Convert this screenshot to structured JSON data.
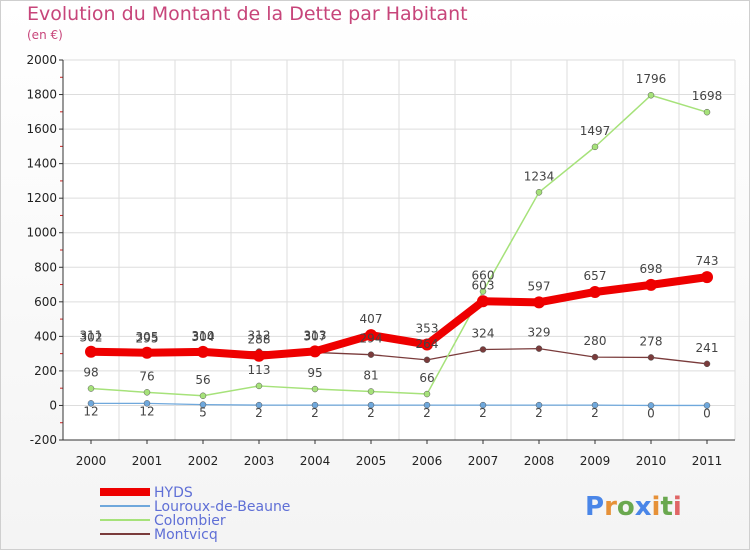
{
  "title": "Evolution du Montant de la Dette par Habitant",
  "subtitle": "(en €)",
  "logo": "Proxiti",
  "chart_data": {
    "type": "line",
    "x": [
      "2000",
      "2001",
      "2002",
      "2003",
      "2004",
      "2005",
      "2006",
      "2007",
      "2008",
      "2009",
      "2010",
      "2011"
    ],
    "ylim": [
      -200,
      2000
    ],
    "yticks": [
      -200,
      0,
      200,
      400,
      600,
      800,
      1000,
      1200,
      1400,
      1600,
      1800,
      2000
    ],
    "legend_position": "bottom-left",
    "series": [
      {
        "name": "HYDS",
        "color": "#ee0000",
        "width": 8,
        "marker": 6,
        "labels": [
          "311",
          "305",
          "310",
          "288",
          "313",
          "407",
          "353",
          "603",
          "597",
          "657",
          "698",
          "743"
        ],
        "values": [
          311,
          305,
          310,
          288,
          313,
          407,
          353,
          603,
          597,
          657,
          698,
          743
        ]
      },
      {
        "name": "Louroux-de-Beaune",
        "color": "#6fa8dc",
        "width": 1.3,
        "marker": 3,
        "labels": [
          "12",
          "12",
          "5",
          "2",
          "2",
          "2",
          "2",
          "2",
          "2",
          "2",
          "0",
          "0"
        ],
        "values": [
          12,
          12,
          5,
          2,
          2,
          2,
          2,
          2,
          2,
          2,
          0,
          0
        ]
      },
      {
        "name": "Colombier",
        "color": "#a6e27a",
        "width": 1.5,
        "marker": 3,
        "labels": [
          "98",
          "76",
          "56",
          "113",
          "95",
          "81",
          "66",
          "660",
          "1234",
          "1497",
          "1796",
          "1698"
        ],
        "values": [
          98,
          76,
          56,
          113,
          95,
          81,
          66,
          660,
          1234,
          1497,
          1796,
          1698
        ]
      },
      {
        "name": "Montvicq",
        "color": "#7a3b3b",
        "width": 1.3,
        "marker": 3,
        "labels": [
          "302",
          "295",
          "304",
          "312",
          "307",
          "294",
          "264",
          "324",
          "329",
          "280",
          "278",
          "241"
        ],
        "values": [
          302,
          295,
          304,
          312,
          307,
          294,
          264,
          324,
          329,
          280,
          278,
          241
        ]
      }
    ]
  }
}
